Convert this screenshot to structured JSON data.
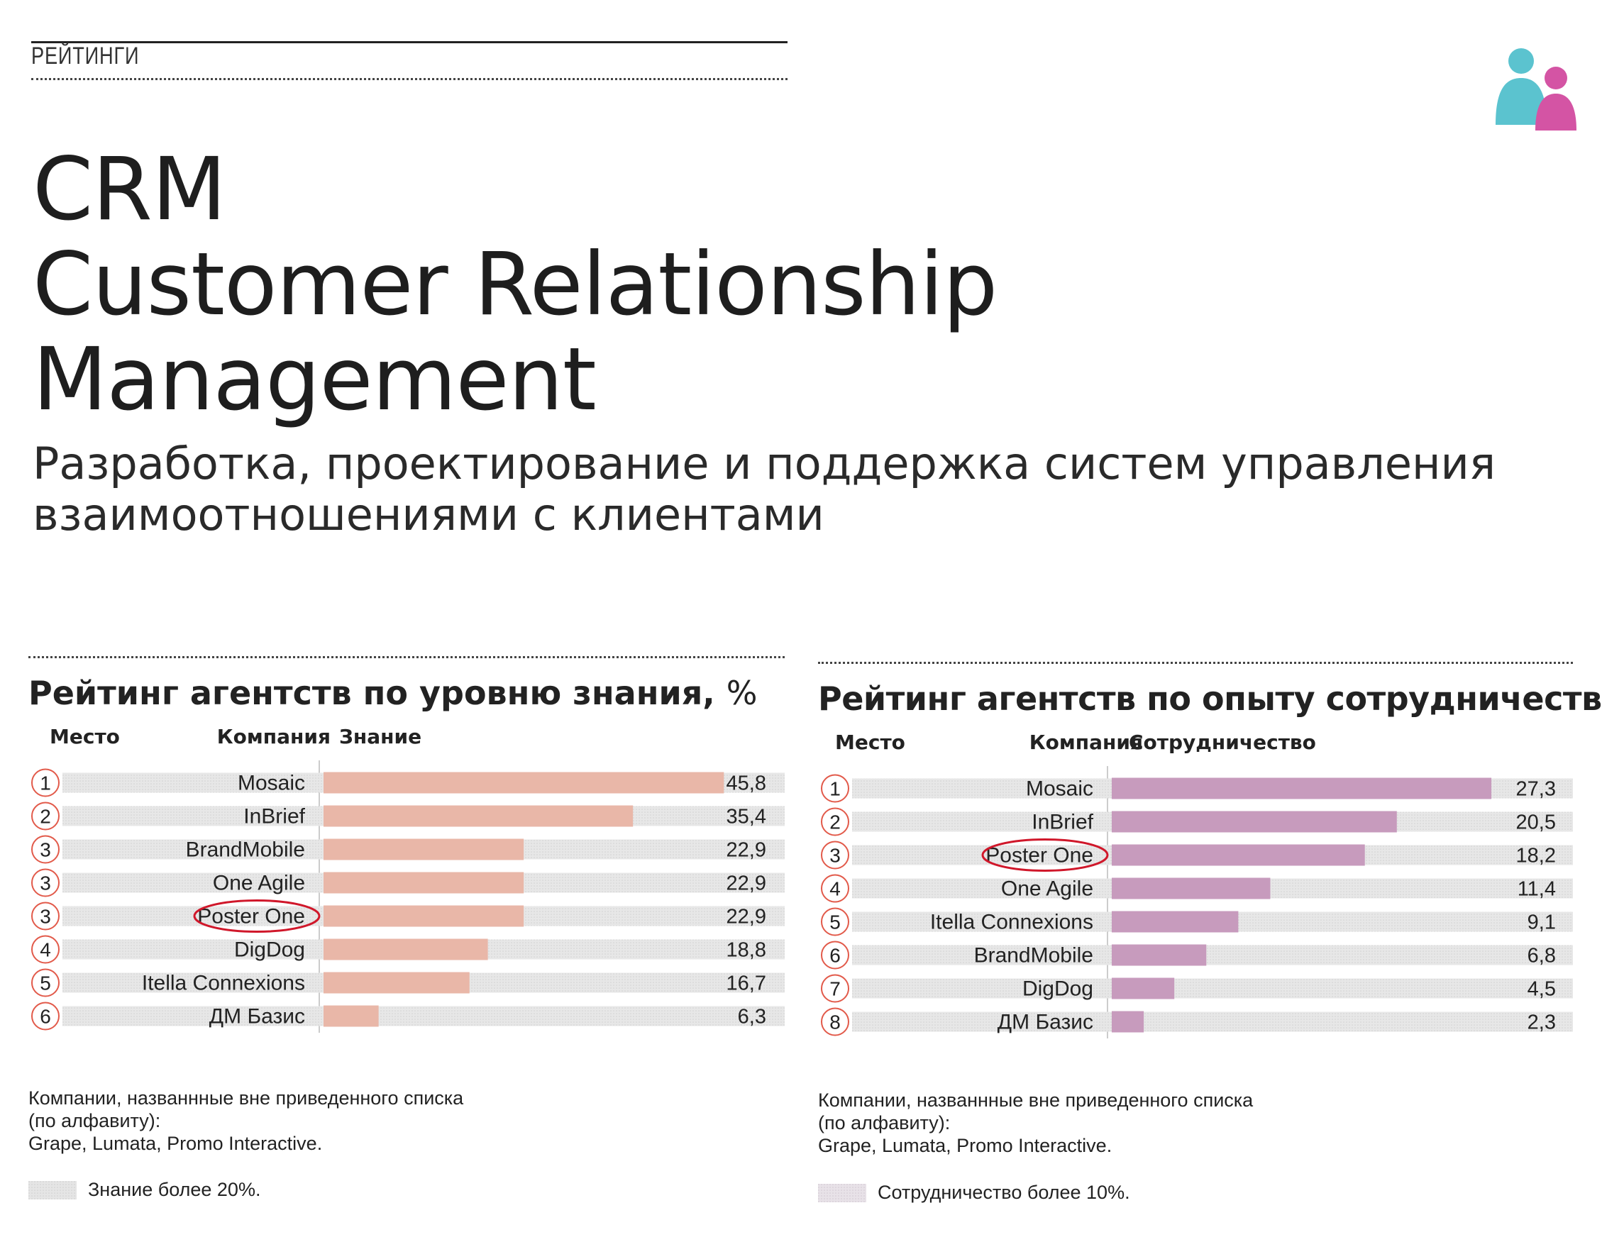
{
  "page": {
    "section_label": "РЕЙТИНГИ",
    "title_lines": [
      "CRM",
      "Customer Relationship",
      "Management"
    ],
    "subtitle": "Разработка, проектирование и поддержка систем управления взаимоотношениями с клиентами"
  },
  "colors": {
    "knowledge_bar": "#e9b7a8",
    "cooperation_bar": "#c79bbd",
    "stripe": "#e3e3e3",
    "circle": "#e25a4a",
    "highlight": "#d0172a",
    "logo_teal": "#5bc3cf",
    "logo_pink": "#d454a4"
  },
  "chart_data": [
    {
      "type": "bar",
      "title": "Рейтинг агентств по уровню знания, %",
      "title_main": "Рейтинг агентств по уровню знания,",
      "title_unit": "%",
      "col_place": "Место",
      "col_company": "Компания",
      "col_value": "Знание",
      "xlim": [
        0,
        50
      ],
      "rows": [
        {
          "place": "1",
          "company": "Mosaic",
          "value": 45.8,
          "label": "45,8",
          "highlight": false
        },
        {
          "place": "2",
          "company": "InBrief",
          "value": 35.4,
          "label": "35,4",
          "highlight": false
        },
        {
          "place": "3",
          "company": "BrandMobile",
          "value": 22.9,
          "label": "22,9",
          "highlight": false
        },
        {
          "place": "3",
          "company": "One Agile",
          "value": 22.9,
          "label": "22,9",
          "highlight": false
        },
        {
          "place": "3",
          "company": "Poster One",
          "value": 22.9,
          "label": "22,9",
          "highlight": true
        },
        {
          "place": "4",
          "company": "DigDog",
          "value": 18.8,
          "label": "18,8",
          "highlight": false
        },
        {
          "place": "5",
          "company": "Itella Connexions",
          "value": 16.7,
          "label": "16,7",
          "highlight": false
        },
        {
          "place": "6",
          "company": "ДМ Базис",
          "value": 6.3,
          "label": "6,3",
          "highlight": false
        }
      ],
      "notes": [
        "Компании, названнные вне приведенного списка",
        "(по алфавиту):",
        "Grape, Lumata, Promo Interactive."
      ],
      "legend": "Знание более 20%."
    },
    {
      "type": "bar",
      "title": "Рейтинг агентств по опыту сотрудничества, %",
      "title_main": "Рейтинг агентств по опыту сотрудничества,",
      "title_unit": "%",
      "col_place": "Место",
      "col_company": "Компания",
      "col_value": "Сотрудничество",
      "xlim": [
        0,
        30
      ],
      "rows": [
        {
          "place": "1",
          "company": "Mosaic",
          "value": 27.3,
          "label": "27,3",
          "highlight": false
        },
        {
          "place": "2",
          "company": "InBrief",
          "value": 20.5,
          "label": "20,5",
          "highlight": false
        },
        {
          "place": "3",
          "company": "Poster One",
          "value": 18.2,
          "label": "18,2",
          "highlight": true
        },
        {
          "place": "4",
          "company": "One Agile",
          "value": 11.4,
          "label": "11,4",
          "highlight": false
        },
        {
          "place": "5",
          "company": "Itella Connexions",
          "value": 9.1,
          "label": "9,1",
          "highlight": false
        },
        {
          "place": "6",
          "company": "BrandMobile",
          "value": 6.8,
          "label": "6,8",
          "highlight": false
        },
        {
          "place": "7",
          "company": "DigDog",
          "value": 4.5,
          "label": "4,5",
          "highlight": false
        },
        {
          "place": "8",
          "company": "ДМ Базис",
          "value": 2.3,
          "label": "2,3",
          "highlight": false
        }
      ],
      "notes": [
        "Компании, названнные вне приведенного списка",
        "(по алфавиту):",
        "Grape, Lumata, Promo Interactive."
      ],
      "legend": "Сотрудничество более 10%."
    }
  ]
}
